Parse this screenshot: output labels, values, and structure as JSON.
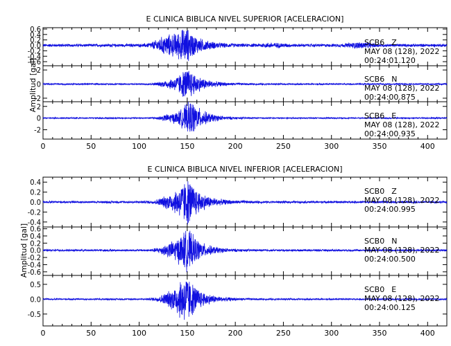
{
  "chart_data": [
    {
      "type": "line",
      "title": "E CLINICA BIBLICA NIVEL SUPERIOR [ACELERACION]",
      "ylabel": "Amplitud [gal]",
      "xlim": [
        0,
        420
      ],
      "x_ticks": [
        0,
        50,
        100,
        150,
        200,
        250,
        300,
        350,
        400
      ],
      "color": "#1010e0",
      "panels": [
        {
          "station": "SCB6",
          "component": "Z",
          "date": "MAY 08 (128), 2022",
          "time": "00:24:01.120",
          "ylim": [
            -0.75,
            0.65
          ],
          "y_ticks": [
            "0.6",
            "0.4",
            "0.2",
            "0.0",
            "-0.2",
            "-0.4",
            "-0.6"
          ],
          "y_tick_values": [
            0.6,
            0.4,
            0.2,
            0.0,
            -0.2,
            -0.4,
            -0.6
          ],
          "peak_time": 150,
          "peak_amp": 0.6,
          "noise": 0.06,
          "bursts": [
            [
              130,
              0.35
            ],
            [
              240,
              0.05
            ],
            [
              330,
              0.08
            ]
          ]
        },
        {
          "station": "SCB6",
          "component": "N",
          "date": "MAY 08 (128), 2022",
          "time": "00:24:00.875",
          "ylim": [
            -2.5,
            2.6
          ],
          "y_ticks": [
            "2",
            "0",
            "-2"
          ],
          "y_tick_values": [
            2,
            0,
            -2
          ],
          "peak_time": 152,
          "peak_amp": 2.2,
          "noise": 0.12,
          "bursts": [
            [
              135,
              0.6
            ]
          ]
        },
        {
          "station": "SCB6",
          "component": "E",
          "date": "MAY 08 (128), 2022",
          "time": "00:24:00.935",
          "ylim": [
            -3.6,
            2.8
          ],
          "y_ticks": [
            "2",
            "0",
            "-2"
          ],
          "y_tick_values": [
            2,
            0,
            -2
          ],
          "peak_time": 155,
          "peak_amp": 3.0,
          "noise": 0.12,
          "bursts": [
            [
              135,
              0.7
            ]
          ]
        }
      ]
    },
    {
      "type": "line",
      "title": "E CLINICA BIBLICA NIVEL INFERIOR [ACELERACION]",
      "ylabel": "Amplitud [gal]",
      "xlim": [
        0,
        420
      ],
      "x_ticks": [
        0,
        50,
        100,
        150,
        200,
        250,
        300,
        350,
        400
      ],
      "color": "#1010e0",
      "panels": [
        {
          "station": "SCB0",
          "component": "Z",
          "date": "MAY 08 (128), 2022",
          "time": "00:24:00.995",
          "ylim": [
            -0.5,
            0.5
          ],
          "y_ticks": [
            "0.4",
            "0.2",
            "0.0",
            "-0.2",
            "-0.4"
          ],
          "y_tick_values": [
            0.4,
            0.2,
            0.0,
            -0.2,
            -0.4
          ],
          "peak_time": 152,
          "peak_amp": 0.45,
          "noise": 0.025,
          "bursts": [
            [
              135,
              0.15
            ]
          ]
        },
        {
          "station": "SCB0",
          "component": "N",
          "date": "MAY 08 (128), 2022",
          "time": "00:24:00.500",
          "ylim": [
            -0.7,
            0.65
          ],
          "y_ticks": [
            "0.6",
            "0.4",
            "0.2",
            "0.0",
            "-0.2",
            "-0.4",
            "-0.6"
          ],
          "y_tick_values": [
            0.6,
            0.4,
            0.2,
            0.0,
            -0.2,
            -0.4,
            -0.6
          ],
          "peak_time": 152,
          "peak_amp": 0.55,
          "noise": 0.03,
          "bursts": [
            [
              135,
              0.2
            ]
          ]
        },
        {
          "station": "SCB0",
          "component": "E",
          "date": "MAY 08 (128), 2022",
          "time": "00:24:00.125",
          "ylim": [
            -0.9,
            0.8
          ],
          "y_ticks": [
            "0.5",
            "0.0",
            "-0.5"
          ],
          "y_tick_values": [
            0.5,
            0.0,
            -0.5
          ],
          "peak_time": 150,
          "peak_amp": 0.8,
          "noise": 0.03,
          "bursts": [
            [
              135,
              0.25
            ]
          ]
        }
      ]
    }
  ]
}
